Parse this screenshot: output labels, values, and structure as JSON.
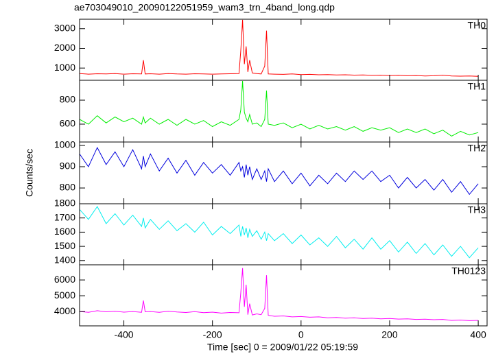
{
  "title": "ae703049010_20090122051959_wam3_trn_4band_long.qdp",
  "ylabel": "Counts/sec",
  "xlabel": "Time [sec] 0 = 2009/01/22 05:19:59",
  "chart_data": [
    {
      "type": "line",
      "label": "TH0",
      "color": "#ff0000",
      "xlim": [
        -500,
        420
      ],
      "xticks": [
        -400,
        -200,
        0,
        200,
        400
      ],
      "ylim": [
        380,
        3480
      ],
      "yticks": [
        1000,
        2000,
        3000
      ],
      "x": [
        -500,
        -480,
        -460,
        -440,
        -420,
        -400,
        -380,
        -360,
        -356,
        -352,
        -340,
        -320,
        -300,
        -280,
        -260,
        -240,
        -220,
        -200,
        -180,
        -160,
        -140,
        -136,
        -132,
        -128,
        -124,
        -120,
        -116,
        -110,
        -100,
        -90,
        -82,
        -78,
        -74,
        -60,
        -40,
        -20,
        0,
        20,
        40,
        60,
        80,
        100,
        120,
        140,
        160,
        180,
        200,
        220,
        240,
        260,
        280,
        300,
        320,
        340,
        360,
        380,
        400
      ],
      "values": [
        720,
        690,
        710,
        700,
        720,
        690,
        710,
        700,
        1400,
        700,
        710,
        690,
        720,
        700,
        690,
        710,
        700,
        690,
        700,
        710,
        720,
        1900,
        3450,
        1200,
        2100,
        800,
        1400,
        750,
        720,
        700,
        1100,
        2900,
        700,
        690,
        680,
        700,
        670,
        680,
        660,
        670,
        650,
        660,
        640,
        650,
        630,
        640,
        620,
        630,
        610,
        620,
        600,
        610,
        640,
        600,
        590,
        600,
        580
      ]
    },
    {
      "type": "line",
      "label": "TH1",
      "color": "#00ee00",
      "xlim": [
        -500,
        420
      ],
      "xticks": [
        -400,
        -200,
        0,
        200,
        400
      ],
      "ylim": [
        451,
        966
      ],
      "yticks": [
        600,
        800
      ],
      "x": [
        -500,
        -480,
        -460,
        -440,
        -420,
        -400,
        -380,
        -360,
        -356,
        -352,
        -340,
        -320,
        -300,
        -280,
        -260,
        -240,
        -220,
        -200,
        -180,
        -160,
        -140,
        -136,
        -132,
        -128,
        -124,
        -120,
        -116,
        -110,
        -100,
        -90,
        -82,
        -78,
        -74,
        -60,
        -40,
        -20,
        0,
        20,
        40,
        60,
        80,
        100,
        120,
        140,
        160,
        180,
        200,
        220,
        240,
        260,
        280,
        300,
        320,
        340,
        360,
        380,
        400
      ],
      "values": [
        640,
        600,
        670,
        610,
        660,
        620,
        650,
        600,
        660,
        610,
        650,
        600,
        640,
        590,
        640,
        600,
        630,
        580,
        620,
        590,
        640,
        720,
        960,
        700,
        650,
        620,
        680,
        600,
        610,
        580,
        640,
        880,
        600,
        590,
        610,
        570,
        600,
        560,
        590,
        560,
        580,
        550,
        580,
        540,
        570,
        550,
        570,
        530,
        560,
        530,
        560,
        520,
        550,
        500,
        540,
        510,
        530
      ]
    },
    {
      "type": "line",
      "label": "TH2",
      "color": "#0000dd",
      "xlim": [
        -500,
        420
      ],
      "xticks": [
        -400,
        -200,
        0,
        200,
        400
      ],
      "ylim": [
        726,
        1016
      ],
      "yticks": [
        800,
        900,
        1000
      ],
      "x": [
        -500,
        -480,
        -460,
        -440,
        -420,
        -400,
        -380,
        -360,
        -356,
        -352,
        -340,
        -320,
        -300,
        -280,
        -260,
        -240,
        -220,
        -200,
        -180,
        -160,
        -140,
        -136,
        -132,
        -128,
        -124,
        -120,
        -116,
        -110,
        -100,
        -90,
        -82,
        -78,
        -74,
        -60,
        -40,
        -20,
        0,
        20,
        40,
        60,
        80,
        100,
        120,
        140,
        160,
        180,
        200,
        220,
        240,
        260,
        280,
        300,
        320,
        340,
        360,
        380,
        400
      ],
      "values": [
        960,
        900,
        990,
        910,
        970,
        900,
        980,
        890,
        950,
        900,
        960,
        880,
        940,
        870,
        930,
        860,
        920,
        870,
        910,
        860,
        920,
        880,
        900,
        850,
        910,
        860,
        900,
        840,
        890,
        840,
        880,
        830,
        890,
        830,
        880,
        820,
        870,
        810,
        860,
        820,
        870,
        830,
        880,
        840,
        880,
        830,
        860,
        800,
        850,
        800,
        840,
        790,
        840,
        780,
        830,
        770,
        820
      ]
    },
    {
      "type": "line",
      "label": "TH3",
      "color": "#00eeee",
      "xlim": [
        -500,
        420
      ],
      "xticks": [
        -400,
        -200,
        0,
        200,
        400
      ],
      "ylim": [
        1370,
        1800
      ],
      "yticks": [
        1400,
        1500,
        1600,
        1700,
        1800
      ],
      "x": [
        -500,
        -480,
        -460,
        -440,
        -420,
        -400,
        -380,
        -360,
        -356,
        -352,
        -340,
        -320,
        -300,
        -280,
        -260,
        -240,
        -220,
        -200,
        -180,
        -160,
        -140,
        -136,
        -132,
        -128,
        -124,
        -120,
        -116,
        -110,
        -100,
        -90,
        -82,
        -78,
        -74,
        -60,
        -40,
        -20,
        0,
        20,
        40,
        60,
        80,
        100,
        120,
        140,
        160,
        180,
        200,
        220,
        240,
        260,
        280,
        300,
        320,
        340,
        360,
        380,
        400
      ],
      "values": [
        1760,
        1690,
        1780,
        1660,
        1730,
        1650,
        1720,
        1640,
        1700,
        1630,
        1690,
        1620,
        1680,
        1610,
        1660,
        1600,
        1670,
        1580,
        1640,
        1590,
        1650,
        1570,
        1640,
        1580,
        1630,
        1560,
        1620,
        1570,
        1610,
        1550,
        1600,
        1540,
        1590,
        1540,
        1590,
        1520,
        1580,
        1510,
        1560,
        1500,
        1570,
        1490,
        1550,
        1480,
        1560,
        1480,
        1540,
        1460,
        1530,
        1450,
        1520,
        1440,
        1510,
        1430,
        1500,
        1420,
        1490
      ]
    },
    {
      "type": "line",
      "label": "TH0123",
      "color": "#ff00ff",
      "xlim": [
        -500,
        420
      ],
      "xticks": [
        -400,
        -200,
        0,
        200,
        400
      ],
      "ylim": [
        3090,
        6960
      ],
      "yticks": [
        4000,
        5000,
        6000
      ],
      "x": [
        -500,
        -480,
        -460,
        -440,
        -420,
        -400,
        -380,
        -360,
        -356,
        -352,
        -340,
        -320,
        -300,
        -280,
        -260,
        -240,
        -220,
        -200,
        -180,
        -160,
        -140,
        -136,
        -132,
        -128,
        -124,
        -120,
        -116,
        -110,
        -100,
        -90,
        -82,
        -78,
        -74,
        -60,
        -40,
        -20,
        0,
        20,
        40,
        60,
        80,
        100,
        120,
        140,
        160,
        180,
        200,
        220,
        240,
        260,
        280,
        300,
        320,
        340,
        360,
        380,
        400
      ],
      "values": [
        4000,
        3950,
        4050,
        3980,
        4020,
        3960,
        4000,
        3950,
        4700,
        3980,
        4000,
        3950,
        4020,
        3970,
        3940,
        3990,
        3930,
        3960,
        3900,
        3940,
        3920,
        5200,
        6750,
        4300,
        5700,
        3800,
        4500,
        3780,
        3850,
        3800,
        4200,
        6300,
        3760,
        3700,
        3720,
        3660,
        3680,
        3640,
        3660,
        3600,
        3620,
        3580,
        3600,
        3560,
        3580,
        3540,
        3560,
        3520,
        3540,
        3500,
        3510,
        3480,
        3500,
        3440,
        3460,
        3420,
        3440
      ]
    }
  ]
}
